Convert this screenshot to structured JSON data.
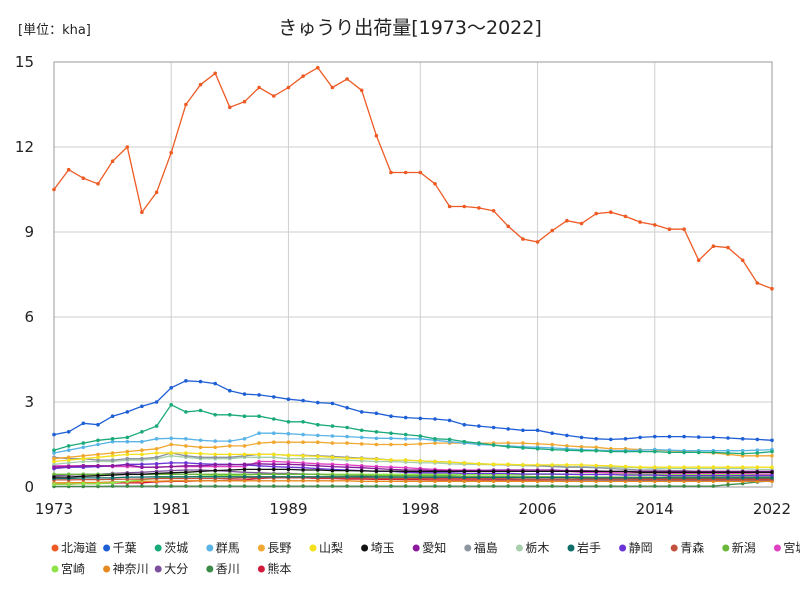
{
  "chart_data": {
    "type": "line",
    "title": "きゅうり出荷量[1973～2022]",
    "unit_label": "[単位：kha]",
    "xlim": [
      1973,
      2022
    ],
    "ylim": [
      0,
      15
    ],
    "x_ticks": [
      "1973",
      "1981",
      "1989",
      "1998",
      "2006",
      "2014",
      "2022"
    ],
    "y_ticks": [
      "0",
      "3",
      "6",
      "9",
      "12",
      "15"
    ],
    "grid": true,
    "legend_position": "bottom",
    "series": [
      {
        "name": "北海道",
        "color": "#ee5a24",
        "values": [
          10.5,
          11.2,
          10.9,
          10.7,
          11.5,
          12.0,
          9.7,
          10.4,
          11.8,
          13.5,
          14.2,
          14.6,
          13.4,
          13.6,
          14.1,
          13.8,
          14.1,
          14.5,
          14.8,
          14.1,
          14.4,
          14.0,
          12.4,
          11.1,
          11.1,
          11.1,
          10.7,
          9.9,
          9.9,
          9.85,
          9.75,
          9.2,
          8.75,
          8.65,
          9.05,
          9.4,
          9.3,
          9.65,
          9.7,
          9.55,
          9.35,
          9.25,
          9.1,
          9.1,
          8.0,
          8.5,
          8.45,
          8.0,
          7.2,
          7.0
        ]
      },
      {
        "name": "千葉",
        "color": "#1f5fd6",
        "values": [
          1.85,
          1.95,
          2.25,
          2.2,
          2.5,
          2.65,
          2.85,
          3.0,
          3.5,
          3.75,
          3.72,
          3.65,
          3.4,
          3.28,
          3.25,
          3.18,
          3.1,
          3.05,
          2.98,
          2.95,
          2.8,
          2.65,
          2.6,
          2.5,
          2.45,
          2.42,
          2.4,
          2.35,
          2.2,
          2.15,
          2.1,
          2.05,
          2.0,
          2.0,
          1.9,
          1.82,
          1.75,
          1.7,
          1.68,
          1.7,
          1.75,
          1.78,
          1.78,
          1.78,
          1.76,
          1.75,
          1.73,
          1.7,
          1.68,
          1.65
        ]
      },
      {
        "name": "茨城",
        "color": "#1aa97a",
        "values": [
          1.3,
          1.45,
          1.55,
          1.65,
          1.7,
          1.75,
          1.95,
          2.15,
          2.9,
          2.65,
          2.7,
          2.55,
          2.55,
          2.5,
          2.5,
          2.4,
          2.3,
          2.3,
          2.2,
          2.15,
          2.1,
          2.0,
          1.95,
          1.9,
          1.85,
          1.8,
          1.7,
          1.68,
          1.6,
          1.55,
          1.48,
          1.42,
          1.38,
          1.35,
          1.32,
          1.3,
          1.28,
          1.28,
          1.25,
          1.25,
          1.25,
          1.25,
          1.22,
          1.22,
          1.22,
          1.22,
          1.2,
          1.18,
          1.2,
          1.25
        ]
      },
      {
        "name": "群馬",
        "color": "#5ab4e6",
        "values": [
          1.2,
          1.3,
          1.4,
          1.5,
          1.6,
          1.6,
          1.6,
          1.7,
          1.72,
          1.7,
          1.65,
          1.62,
          1.62,
          1.7,
          1.9,
          1.9,
          1.88,
          1.85,
          1.82,
          1.8,
          1.78,
          1.75,
          1.72,
          1.72,
          1.7,
          1.7,
          1.65,
          1.6,
          1.55,
          1.5,
          1.48,
          1.45,
          1.42,
          1.4,
          1.38,
          1.35,
          1.32,
          1.3,
          1.28,
          1.28,
          1.3,
          1.32,
          1.3,
          1.28,
          1.28,
          1.28,
          1.28,
          1.28,
          1.3,
          1.32
        ]
      },
      {
        "name": "長野",
        "color": "#f0a830",
        "values": [
          1.0,
          1.05,
          1.1,
          1.15,
          1.2,
          1.25,
          1.3,
          1.35,
          1.5,
          1.45,
          1.4,
          1.4,
          1.45,
          1.45,
          1.55,
          1.58,
          1.58,
          1.58,
          1.58,
          1.55,
          1.55,
          1.52,
          1.5,
          1.5,
          1.5,
          1.52,
          1.55,
          1.55,
          1.55,
          1.55,
          1.55,
          1.55,
          1.55,
          1.52,
          1.5,
          1.45,
          1.42,
          1.4,
          1.35,
          1.35,
          1.32,
          1.3,
          1.28,
          1.25,
          1.22,
          1.2,
          1.15,
          1.1,
          1.1,
          1.1
        ]
      },
      {
        "name": "山梨",
        "color": "#f5e11a",
        "values": [
          0.9,
          0.95,
          1.0,
          1.05,
          1.1,
          1.15,
          1.15,
          1.2,
          1.2,
          1.2,
          1.18,
          1.15,
          1.15,
          1.15,
          1.15,
          1.15,
          1.12,
          1.1,
          1.08,
          1.05,
          1.02,
          1.0,
          0.98,
          0.95,
          0.95,
          0.92,
          0.9,
          0.88,
          0.85,
          0.82,
          0.8,
          0.8,
          0.78,
          0.78,
          0.78,
          0.78,
          0.78,
          0.76,
          0.75,
          0.72,
          0.7,
          0.7,
          0.7,
          0.7,
          0.7,
          0.7,
          0.7,
          0.7,
          0.7,
          0.7
        ]
      },
      {
        "name": "埼玉",
        "color": "#111111",
        "values": [
          0.35,
          0.35,
          0.38,
          0.4,
          0.42,
          0.45,
          0.45,
          0.48,
          0.5,
          0.52,
          0.55,
          0.58,
          0.6,
          0.62,
          0.62,
          0.62,
          0.62,
          0.6,
          0.6,
          0.58,
          0.58,
          0.57,
          0.56,
          0.56,
          0.55,
          0.55,
          0.55,
          0.55,
          0.55,
          0.55,
          0.55,
          0.55,
          0.55,
          0.55,
          0.55,
          0.55,
          0.55,
          0.55,
          0.55,
          0.55,
          0.52,
          0.52,
          0.52,
          0.52,
          0.52,
          0.52,
          0.52,
          0.52,
          0.52,
          0.52
        ]
      },
      {
        "name": "愛知",
        "color": "#8a1a9b",
        "values": [
          0.7,
          0.72,
          0.75,
          0.75,
          0.75,
          0.78,
          0.7,
          0.7,
          0.72,
          0.75,
          0.75,
          0.78,
          0.78,
          0.8,
          0.82,
          0.8,
          0.8,
          0.78,
          0.75,
          0.72,
          0.7,
          0.68,
          0.65,
          0.62,
          0.6,
          0.6,
          0.58,
          0.58,
          0.58,
          0.58,
          0.6,
          0.6,
          0.6,
          0.6,
          0.6,
          0.58,
          0.58,
          0.57,
          0.55,
          0.55,
          0.55,
          0.55,
          0.55,
          0.55,
          0.55,
          0.55,
          0.55,
          0.55,
          0.55,
          0.55
        ]
      },
      {
        "name": "福島",
        "color": "#8c95a0",
        "values": [
          1.05,
          1.0,
          1.0,
          0.95,
          0.95,
          1.0,
          1.0,
          1.05,
          1.2,
          1.1,
          1.05,
          1.05,
          1.05,
          1.1,
          1.15,
          1.15,
          1.12,
          1.12,
          1.1,
          1.08,
          1.05,
          1.02,
          1.0,
          0.95,
          0.95,
          0.92,
          0.9,
          0.88,
          0.85,
          0.82,
          0.8,
          0.78,
          0.78,
          0.75,
          0.72,
          0.7,
          0.7,
          0.68,
          0.65,
          0.62,
          0.6,
          0.6,
          0.58,
          0.58,
          0.55,
          0.55,
          0.55,
          0.55,
          0.55,
          0.55
        ]
      },
      {
        "name": "栃木",
        "color": "#a6cfae",
        "values": [
          0.8,
          0.85,
          0.9,
          0.9,
          0.9,
          0.95,
          0.95,
          1.0,
          1.1,
          1.05,
          1.0,
          1.0,
          1.0,
          1.05,
          1.05,
          1.05,
          1.0,
          1.0,
          1.0,
          0.98,
          0.95,
          0.92,
          0.9,
          0.9,
          0.88,
          0.85,
          0.85,
          0.82,
          0.8,
          0.8,
          0.78,
          0.78,
          0.75,
          0.75,
          0.75,
          0.72,
          0.72,
          0.7,
          0.7,
          0.68,
          0.68,
          0.66,
          0.65,
          0.65,
          0.65,
          0.65,
          0.65,
          0.65,
          0.62,
          0.62
        ]
      },
      {
        "name": "岩手",
        "color": "#0f6e6a",
        "values": [
          0.3,
          0.3,
          0.32,
          0.32,
          0.32,
          0.35,
          0.35,
          0.36,
          0.36,
          0.36,
          0.36,
          0.36,
          0.36,
          0.36,
          0.36,
          0.36,
          0.36,
          0.36,
          0.36,
          0.36,
          0.36,
          0.36,
          0.35,
          0.35,
          0.35,
          0.35,
          0.35,
          0.35,
          0.34,
          0.34,
          0.34,
          0.34,
          0.33,
          0.33,
          0.33,
          0.33,
          0.32,
          0.32,
          0.32,
          0.32,
          0.32,
          0.32,
          0.32,
          0.32,
          0.32,
          0.32,
          0.32,
          0.32,
          0.32,
          0.32
        ]
      },
      {
        "name": "静岡",
        "color": "#6a33d6",
        "values": [
          0.65,
          0.7,
          0.7,
          0.72,
          0.75,
          0.8,
          0.8,
          0.82,
          0.85,
          0.85,
          0.82,
          0.8,
          0.8,
          0.78,
          0.75,
          0.72,
          0.7,
          0.68,
          0.65,
          0.62,
          0.6,
          0.58,
          0.55,
          0.55,
          0.52,
          0.5,
          0.5,
          0.5,
          0.48,
          0.48,
          0.48,
          0.48,
          0.46,
          0.46,
          0.46,
          0.45,
          0.44,
          0.44,
          0.44,
          0.42,
          0.42,
          0.42,
          0.4,
          0.4,
          0.4,
          0.4,
          0.4,
          0.4,
          0.4,
          0.4
        ]
      },
      {
        "name": "青森",
        "color": "#c2523d",
        "values": [
          0.25,
          0.25,
          0.26,
          0.26,
          0.27,
          0.28,
          0.28,
          0.3,
          0.3,
          0.3,
          0.3,
          0.3,
          0.3,
          0.32,
          0.32,
          0.32,
          0.32,
          0.32,
          0.32,
          0.32,
          0.32,
          0.32,
          0.3,
          0.3,
          0.3,
          0.3,
          0.3,
          0.3,
          0.3,
          0.3,
          0.3,
          0.3,
          0.28,
          0.28,
          0.28,
          0.28,
          0.28,
          0.28,
          0.28,
          0.28,
          0.28,
          0.28,
          0.28,
          0.28,
          0.28,
          0.28,
          0.28,
          0.28,
          0.28,
          0.28
        ]
      },
      {
        "name": "新潟",
        "color": "#6ab83a",
        "values": [
          0.45,
          0.45,
          0.45,
          0.45,
          0.45,
          0.45,
          0.45,
          0.45,
          0.45,
          0.45,
          0.45,
          0.45,
          0.45,
          0.45,
          0.45,
          0.45,
          0.45,
          0.45,
          0.45,
          0.42,
          0.42,
          0.42,
          0.4,
          0.4,
          0.4,
          0.4,
          0.4,
          0.4,
          0.38,
          0.38,
          0.38,
          0.38,
          0.38,
          0.36,
          0.36,
          0.36,
          0.36,
          0.35,
          0.35,
          0.35,
          0.35,
          0.35,
          0.35,
          0.35,
          0.35,
          0.35,
          0.35,
          0.35,
          0.35,
          0.35
        ]
      },
      {
        "name": "宮城",
        "color": "#e03fc2",
        "values": [
          0.75,
          0.75,
          0.75,
          0.75,
          0.72,
          0.72,
          0.7,
          0.7,
          0.72,
          0.72,
          0.72,
          0.72,
          0.72,
          0.72,
          0.9,
          0.9,
          0.88,
          0.85,
          0.82,
          0.8,
          0.78,
          0.75,
          0.72,
          0.7,
          0.68,
          0.65,
          0.62,
          0.6,
          0.6,
          0.6,
          0.58,
          0.58,
          0.55,
          0.55,
          0.55,
          0.55,
          0.52,
          0.52,
          0.5,
          0.5,
          0.5,
          0.5,
          0.48,
          0.48,
          0.48,
          0.48,
          0.48,
          0.48,
          0.46,
          0.46
        ]
      },
      {
        "name": "宮崎",
        "color": "#8fe34a",
        "values": [
          0.1,
          0.1,
          0.12,
          0.12,
          0.15,
          0.2,
          0.25,
          0.3,
          0.35,
          0.35,
          0.38,
          0.4,
          0.4,
          0.42,
          0.45,
          0.45,
          0.45,
          0.45,
          0.45,
          0.45,
          0.45,
          0.45,
          0.45,
          0.45,
          0.45,
          0.45,
          0.45,
          0.45,
          0.45,
          0.45,
          0.45,
          0.45,
          0.45,
          0.45,
          0.45,
          0.45,
          0.45,
          0.45,
          0.45,
          0.45,
          0.45,
          0.45,
          0.45,
          0.45,
          0.45,
          0.45,
          0.45,
          0.45,
          0.45,
          0.45
        ]
      },
      {
        "name": "神奈川",
        "color": "#e68a1f",
        "values": [
          0.15,
          0.15,
          0.16,
          0.16,
          0.18,
          0.18,
          0.2,
          0.2,
          0.22,
          0.22,
          0.22,
          0.22,
          0.22,
          0.22,
          0.22,
          0.22,
          0.22,
          0.22,
          0.22,
          0.22,
          0.22,
          0.2,
          0.2,
          0.2,
          0.2,
          0.2,
          0.2,
          0.2,
          0.2,
          0.2,
          0.2,
          0.2,
          0.2,
          0.2,
          0.2,
          0.2,
          0.2,
          0.2,
          0.2,
          0.2,
          0.2,
          0.2,
          0.2,
          0.2,
          0.2,
          0.2,
          0.2,
          0.2,
          0.2,
          0.2
        ]
      },
      {
        "name": "大分",
        "color": "#7d4f9c",
        "values": [
          0.4,
          0.42,
          0.45,
          0.45,
          0.48,
          0.5,
          0.52,
          0.55,
          0.58,
          0.6,
          0.6,
          0.58,
          0.55,
          0.52,
          0.5,
          0.48,
          0.48,
          0.46,
          0.45,
          0.44,
          0.42,
          0.4,
          0.38,
          0.36,
          0.35,
          0.34,
          0.33,
          0.32,
          0.3,
          0.3,
          0.29,
          0.28,
          0.28,
          0.27,
          0.26,
          0.26,
          0.25,
          0.25,
          0.24,
          0.24,
          0.23,
          0.23,
          0.22,
          0.22,
          0.22,
          0.22,
          0.22,
          0.22,
          0.22,
          0.22
        ]
      },
      {
        "name": "香川",
        "color": "#3c8a47",
        "values": [
          0.02,
          0.02,
          0.02,
          0.02,
          0.03,
          0.03,
          0.03,
          0.03,
          0.03,
          0.03,
          0.03,
          0.03,
          0.03,
          0.03,
          0.03,
          0.03,
          0.03,
          0.03,
          0.03,
          0.03,
          0.03,
          0.03,
          0.03,
          0.03,
          0.03,
          0.03,
          0.03,
          0.03,
          0.03,
          0.03,
          0.03,
          0.03,
          0.03,
          0.03,
          0.03,
          0.03,
          0.03,
          0.03,
          0.03,
          0.03,
          0.03,
          0.03,
          0.03,
          0.03,
          0.03,
          0.03,
          0.08,
          0.12,
          0.18,
          0.22
        ]
      },
      {
        "name": "熊本",
        "color": "#d21a3c",
        "values": [
          0.1,
          0.1,
          0.12,
          0.12,
          0.14,
          0.15,
          0.15,
          0.18,
          0.2,
          0.2,
          0.22,
          0.22,
          0.24,
          0.25,
          0.3,
          0.32,
          0.32,
          0.32,
          0.3,
          0.3,
          0.28,
          0.28,
          0.27,
          0.27,
          0.26,
          0.26,
          0.25,
          0.25,
          0.25,
          0.25,
          0.25,
          0.25,
          0.25,
          0.25,
          0.25,
          0.25,
          0.25,
          0.25,
          0.25,
          0.25,
          0.25,
          0.25,
          0.25,
          0.25,
          0.25,
          0.25,
          0.25,
          0.25,
          0.25,
          0.25
        ]
      }
    ]
  }
}
